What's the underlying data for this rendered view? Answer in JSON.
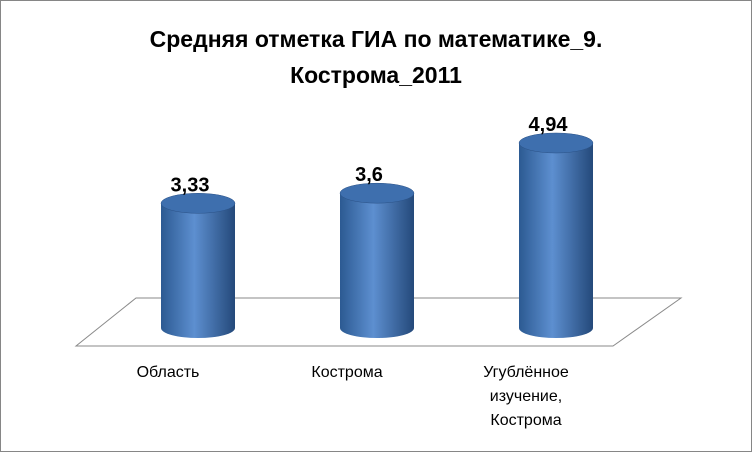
{
  "chart_data": {
    "type": "cylinder-bar",
    "title": "Средняя отметка ГИА по математике_9. Кострома_2011",
    "categories": [
      "Область",
      "Кострома",
      "Угублённое изучение, Кострома"
    ],
    "values": [
      3.33,
      3.6,
      4.94
    ],
    "value_labels": [
      "3,33",
      "3,6",
      "4,94"
    ],
    "color": "#4f81bd"
  }
}
